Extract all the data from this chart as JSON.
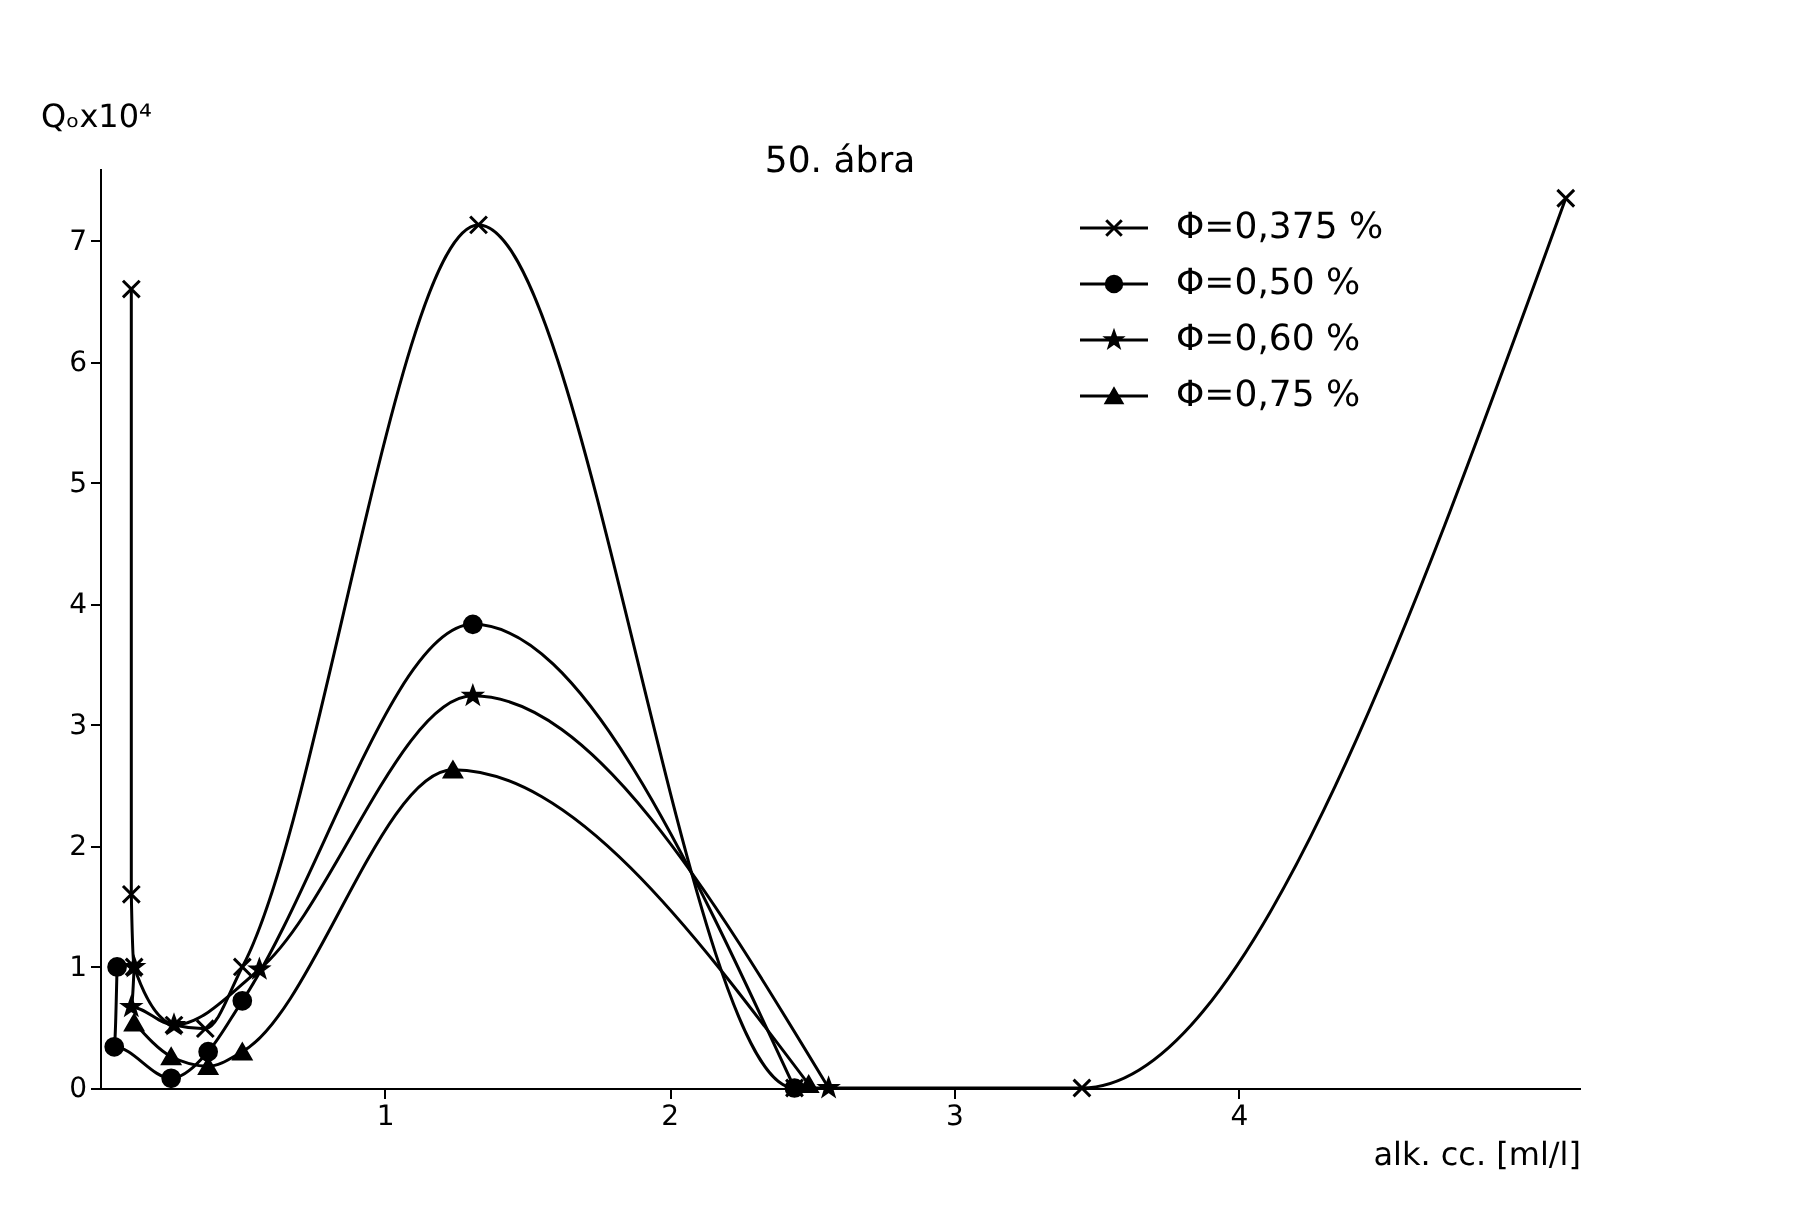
{
  "chart_data": {
    "type": "line",
    "title": "50. ábra",
    "xlabel": "alk. cc. [ml/l]",
    "ylabel": "Qₒx10⁴",
    "xlim": [
      0,
      5.2
    ],
    "xticks": [
      1,
      2,
      3,
      4
    ],
    "ylim": [
      0,
      7.6
    ],
    "yticks": [
      0,
      1,
      2,
      3,
      4,
      5,
      6,
      7
    ],
    "grid": false,
    "legend": "top right",
    "line_style": "solid",
    "series": [
      {
        "name": "Φ=0,375 %",
        "color": "#000000",
        "marker": "cross",
        "x": [
          0.11,
          0.11,
          0.12,
          0.26,
          0.37,
          0.5,
          1.33,
          2.44,
          3.45,
          5.15
        ],
        "values": [
          6.6,
          1.6,
          1.0,
          0.52,
          0.49,
          1.0,
          7.13,
          0,
          0,
          7.35
        ]
      },
      {
        "name": "Φ=0,50 %",
        "color": "#000000",
        "marker": "circle",
        "x": [
          0.06,
          0.05,
          0.25,
          0.38,
          0.5,
          1.31,
          2.44
        ],
        "values": [
          1.0,
          0.34,
          0.08,
          0.3,
          0.72,
          3.83,
          0
        ]
      },
      {
        "name": "Φ=0,60 %",
        "color": "#000000",
        "marker": "star",
        "x": [
          0.12,
          0.11,
          0.26,
          0.56,
          1.31,
          2.56
        ],
        "values": [
          1.0,
          0.67,
          0.52,
          0.98,
          3.24,
          0
        ]
      },
      {
        "name": "Φ=0,75 %",
        "color": "#000000",
        "marker": "triangle",
        "x": [
          0.12,
          0.25,
          0.38,
          0.5,
          1.24,
          2.49
        ],
        "values": [
          0.54,
          0.26,
          0.18,
          0.3,
          2.63,
          0.03
        ]
      }
    ]
  }
}
